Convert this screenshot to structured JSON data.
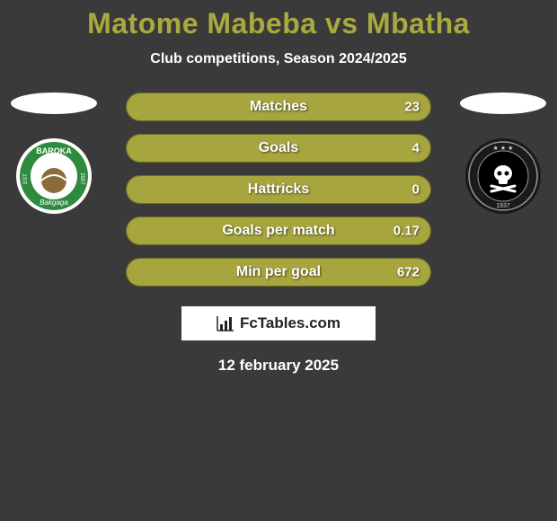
{
  "title": "Matome Mabeba vs Mbatha",
  "title_color": "#a9a93f",
  "subtitle": "Club competitions, Season 2024/2025",
  "date": "12 february 2025",
  "brand": "FcTables.com",
  "background_color": "#3a3a3a",
  "bar_fill_color": "#a7a53d",
  "bar_border_color": "#6d6d2a",
  "player_left": {
    "name": "Matome Mabeba",
    "team_badge": {
      "outer": "#ffffff",
      "ring": "#2e8b3d",
      "label_top": "BAROKA",
      "label_bottom": "Bakgaga",
      "year": "2007"
    }
  },
  "player_right": {
    "name": "Mbatha",
    "team_badge": {
      "outer": "#1a1a1a",
      "ring": "#8a8a8a",
      "inner": "#000000",
      "year": "1937",
      "label": "ORLANDO PIRATES"
    }
  },
  "stats": [
    {
      "label": "Matches",
      "left_val": "",
      "right_val": "23",
      "left_pct": 50,
      "right_pct": 50
    },
    {
      "label": "Goals",
      "left_val": "",
      "right_val": "4",
      "left_pct": 50,
      "right_pct": 50
    },
    {
      "label": "Hattricks",
      "left_val": "",
      "right_val": "0",
      "left_pct": 50,
      "right_pct": 50
    },
    {
      "label": "Goals per match",
      "left_val": "",
      "right_val": "0.17",
      "left_pct": 50,
      "right_pct": 50
    },
    {
      "label": "Min per goal",
      "left_val": "",
      "right_val": "672",
      "left_pct": 50,
      "right_pct": 50
    }
  ]
}
